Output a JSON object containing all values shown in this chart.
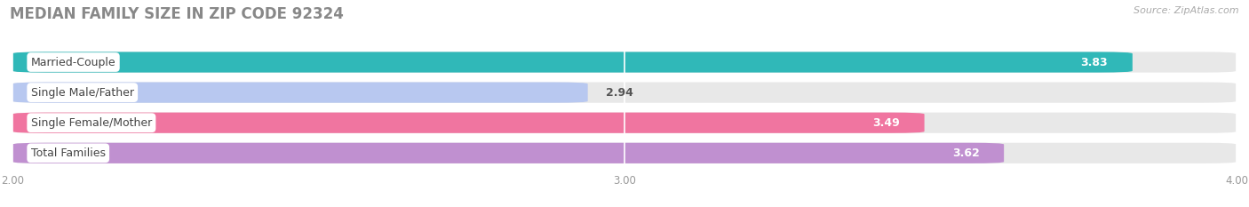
{
  "title": "MEDIAN FAMILY SIZE IN ZIP CODE 92324",
  "source": "Source: ZipAtlas.com",
  "categories": [
    "Married-Couple",
    "Single Male/Father",
    "Single Female/Mother",
    "Total Families"
  ],
  "values": [
    3.83,
    2.94,
    3.49,
    3.62
  ],
  "bar_colors": [
    "#30b8b8",
    "#b8c8f0",
    "#f075a0",
    "#c090d0"
  ],
  "xlim": [
    2.0,
    4.0
  ],
  "xticks": [
    2.0,
    3.0,
    4.0
  ],
  "xtick_labels": [
    "2.00",
    "3.00",
    "4.00"
  ],
  "bar_height": 0.68,
  "track_color": "#e8e8e8",
  "title_fontsize": 12,
  "source_fontsize": 8,
  "label_fontsize": 9,
  "value_fontsize": 9,
  "background_color": "#ffffff",
  "title_color": "#888888",
  "source_color": "#aaaaaa"
}
